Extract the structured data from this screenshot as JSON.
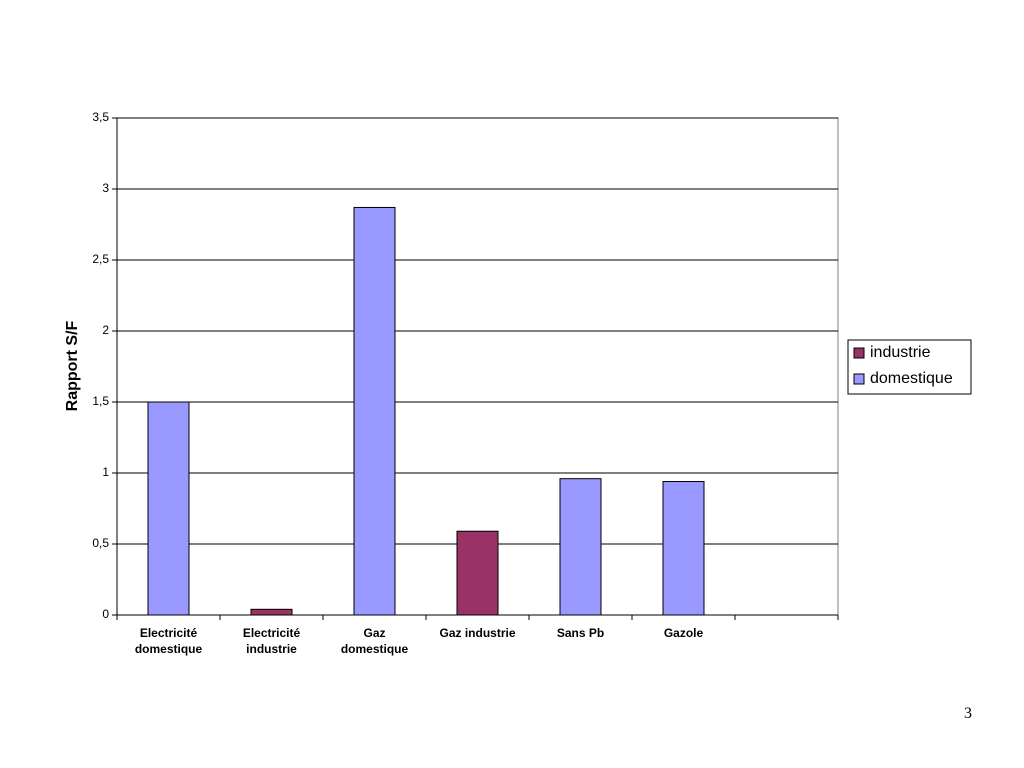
{
  "chart_data": {
    "type": "bar",
    "y_label": "Rapport S/F",
    "categories": [
      [
        "Electricité",
        "domestique"
      ],
      [
        "Electricité",
        "industrie"
      ],
      [
        "Gaz",
        "domestique"
      ],
      [
        "Gaz industrie"
      ],
      [
        "Sans Pb"
      ],
      [
        "Gazole"
      ],
      null
    ],
    "series": [
      {
        "name": "industrie",
        "color": "#993366",
        "values": [
          null,
          0.04,
          null,
          0.59,
          null,
          null,
          null
        ]
      },
      {
        "name": "domestique",
        "color": "#9999ff",
        "values": [
          1.5,
          null,
          2.87,
          null,
          0.96,
          0.94,
          null
        ]
      }
    ],
    "ylim": [
      0,
      3.5
    ],
    "yticks": [
      0,
      {
        "value": 0.5,
        "label": "0,5"
      },
      1,
      {
        "value": 1.5,
        "label": "1,5"
      },
      2,
      {
        "value": 2.5,
        "label": "2,5"
      },
      3,
      {
        "value": 3.5,
        "label": "3,5"
      }
    ],
    "grid": true,
    "legend": "right"
  },
  "page_number": "3"
}
